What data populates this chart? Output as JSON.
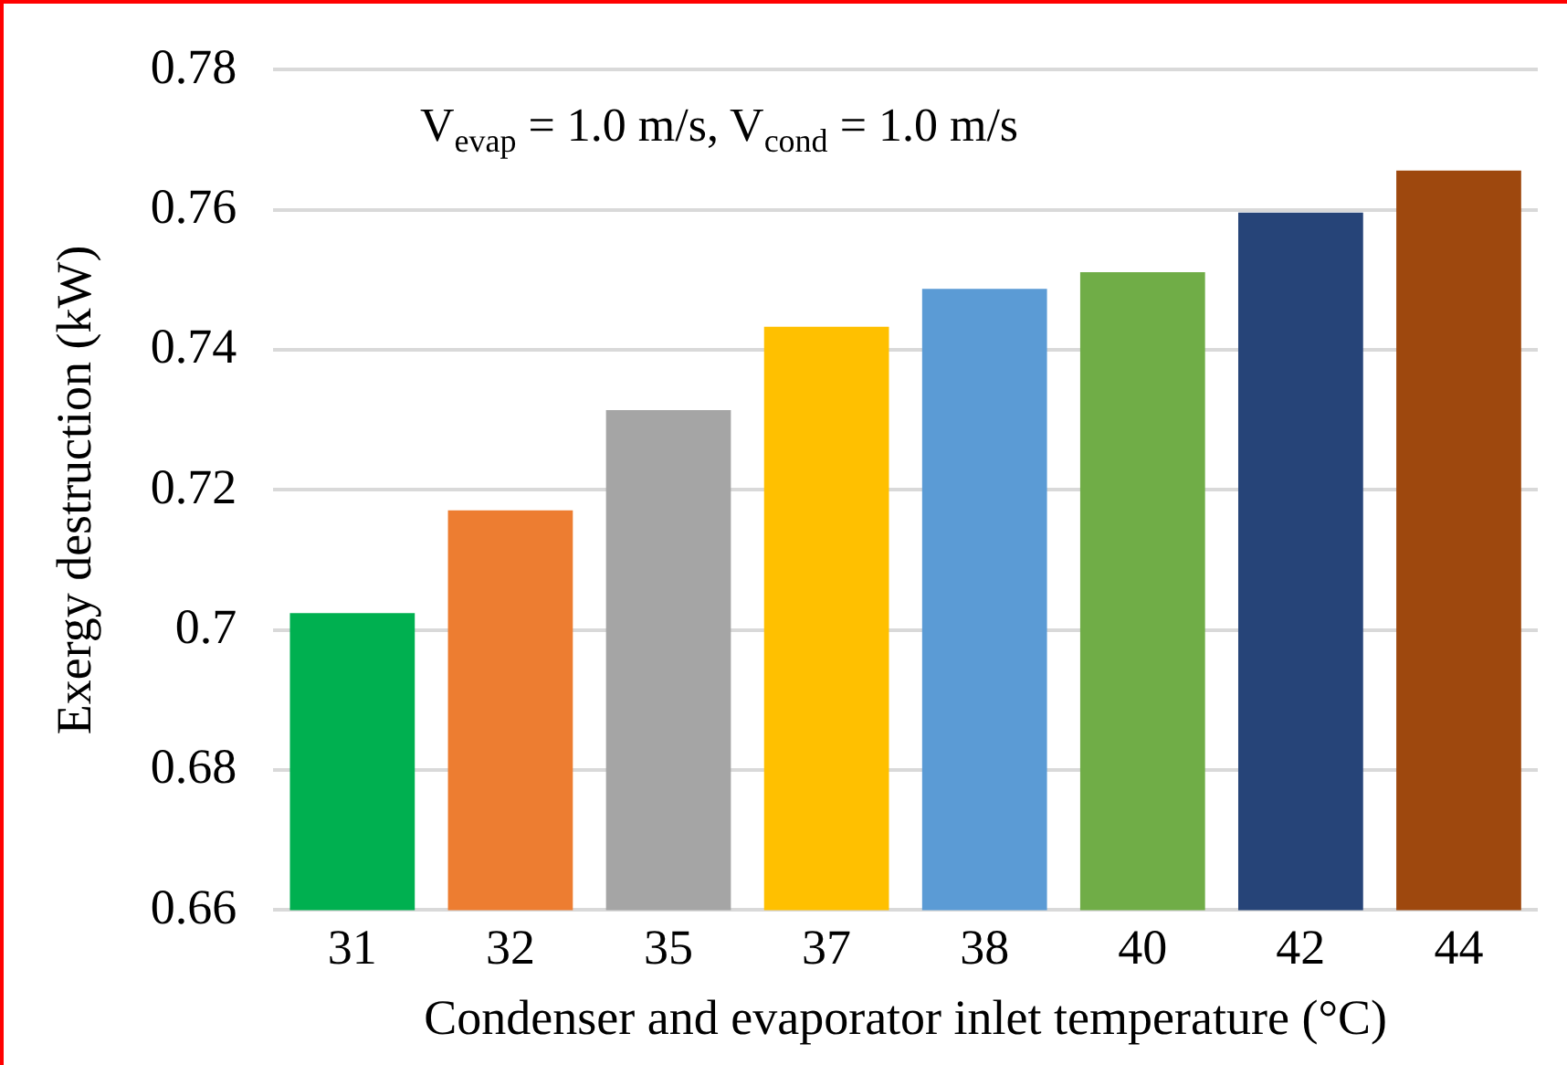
{
  "chart_data": {
    "type": "bar",
    "xlabel": "Condenser and evaporator inlet temperature (°C)",
    "ylabel": "Exergy destruction (kW)",
    "annotations": [
      "V$_{evap}$ = 1.0 m/s, V$_{cond}$ = 1.0 m/s"
    ],
    "categories": [
      "31",
      "32",
      "35",
      "37",
      "38",
      "40",
      "42",
      "44"
    ],
    "values": [
      0.7024,
      0.7171,
      0.7314,
      0.7433,
      0.7487,
      0.7511,
      0.7596,
      0.7656
    ],
    "colors": [
      "#00b050",
      "#ed7d31",
      "#a5a5a5",
      "#ffc000",
      "#5b9bd5",
      "#70ad47",
      "#264478",
      "#9e480e"
    ],
    "ylim": [
      0.66,
      0.78
    ],
    "yticks": [
      0.66,
      0.68,
      {
        "value": 0.7,
        "label": "0.7"
      },
      0.72,
      0.74,
      0.76,
      0.78
    ],
    "grid": "y"
  }
}
